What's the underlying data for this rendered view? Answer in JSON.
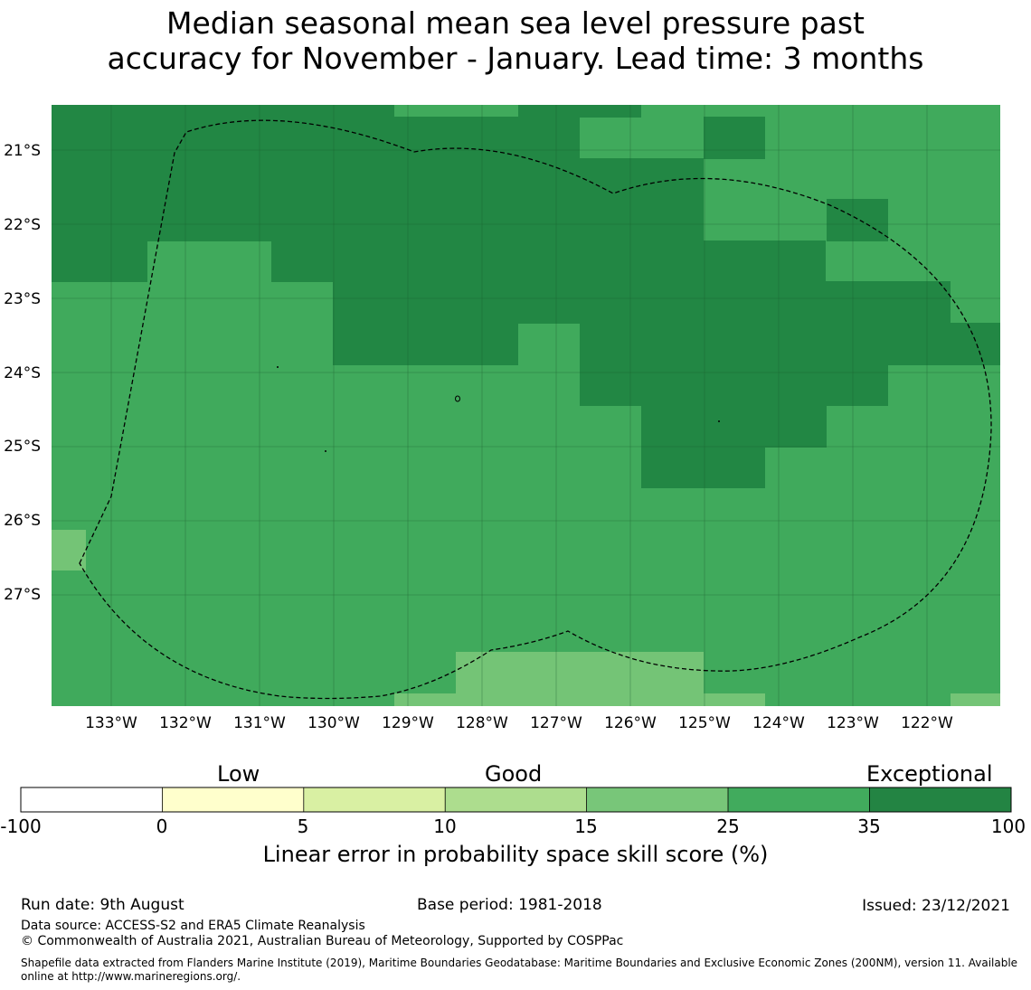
{
  "title": {
    "line1": "Median seasonal mean sea level pressure past",
    "line2": "accuracy for November - January. Lead time: 3 months"
  },
  "map": {
    "lat_labels": [
      "21°S",
      "22°S",
      "23°S",
      "24°S",
      "25°S",
      "26°S",
      "27°S"
    ],
    "lon_labels": [
      "133°W",
      "132°W",
      "131°W",
      "130°W",
      "129°W",
      "128°W",
      "127°W",
      "126°W",
      "125°W",
      "124°W",
      "123°W",
      "122°W"
    ],
    "colors": {
      "exceptional_dark": "#228744",
      "very_good": "#40aa5c",
      "good": "#74c476",
      "gridline": "#1a5a2e",
      "boundary": "#000000"
    }
  },
  "colorbar": {
    "section_labels": [
      "Low",
      "Good",
      "Exceptional"
    ],
    "ticks": [
      "-100",
      "0",
      "5",
      "10",
      "15",
      "25",
      "35",
      "100"
    ],
    "colors": [
      "#ffffff",
      "#ffffcc",
      "#d9f0a3",
      "#addd8e",
      "#78c679",
      "#41ab5d",
      "#238443"
    ],
    "title": "Linear error in probability space skill score (%)"
  },
  "footer": {
    "run_date": "Run date: 9th August",
    "base_period": "Base period: 1981-2018",
    "issued": "Issued: 23/12/2021",
    "data_source": "Data source: ACCESS-S2 and ERA5 Climate Reanalysis",
    "copyright": "© Commonwealth of Australia 2021, Australian Bureau of Meteorology, Supported by COSPPac",
    "shapefile": "Shapefile data extracted from Flanders Marine Institute (2019), Maritime Boundaries Geodatabase: Maritime Boundaries and Exclusive Economic Zones (200NM), version 11. Available online at http://www.marineregions.org/."
  }
}
